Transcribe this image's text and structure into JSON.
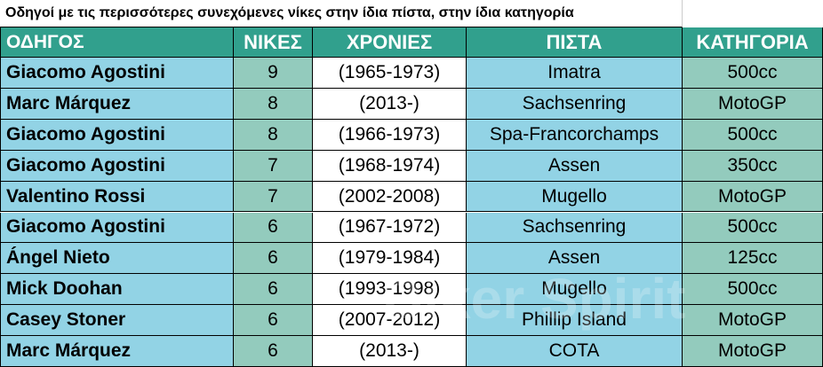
{
  "table": {
    "title": "Οδηγοί με τις περισσότερες  συνεχόμενες νίκες στην ίδια πίστα, στην ίδια κατηγορία",
    "headers": [
      "ΟΔΗΓΟΣ",
      "ΝΙΚΕΣ",
      "ΧΡΟΝΙΕΣ",
      "ΠΙΣΤΑ",
      "ΚΑΤΗΓΟΡΙΑ"
    ],
    "rows": [
      [
        "Giacomo Agostini",
        "9",
        "(1965-1973)",
        "Imatra",
        "500cc"
      ],
      [
        "Marc Márquez",
        "8",
        "(2013-)",
        "Sachsenring",
        "MotoGP"
      ],
      [
        "Giacomo Agostini",
        "8",
        "(1966-1973)",
        "Spa-Francorchamps",
        "500cc"
      ],
      [
        "Giacomo Agostini",
        "7",
        "(1968-1974)",
        "Assen",
        "350cc"
      ],
      [
        "Valentino Rossi",
        "7",
        "(2002-2008)",
        "Mugello",
        "MotoGP"
      ],
      [
        "Giacomo Agostini",
        "6",
        "(1967-1972)",
        "Sachsenring",
        "500cc"
      ],
      [
        "Ángel Nieto",
        "6",
        "(1979-1984)",
        "Assen",
        "125cc"
      ],
      [
        "Mick Doohan",
        "6",
        "(1993-1998)",
        "Mugello",
        "500cc"
      ],
      [
        "Casey Stoner",
        "6",
        "(2007-2012)",
        "Phillip Island",
        "MotoGP"
      ],
      [
        "Marc Márquez",
        "6",
        "(2013-)",
        "COTA",
        "MotoGP"
      ]
    ],
    "watermark": "Biker Spirit"
  }
}
